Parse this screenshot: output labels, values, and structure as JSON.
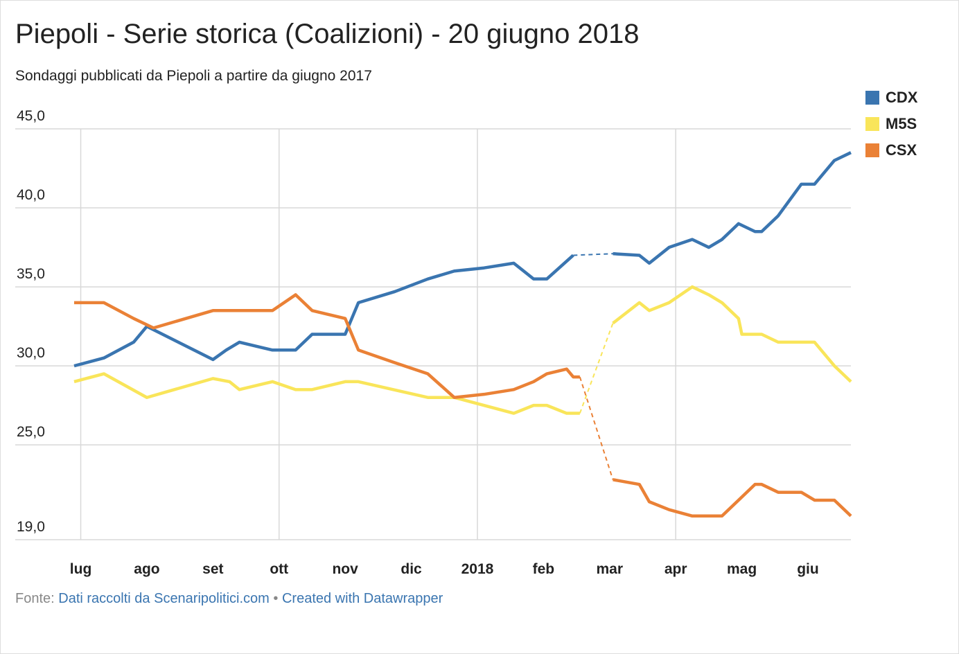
{
  "chart_data": {
    "type": "line",
    "title": "Piepoli - Serie storica (Coalizioni) - 20 giugno 2018",
    "subtitle": "Sondaggi pubblicati da Piepoli a partire da giugno 2017",
    "xlim": [
      -0.1,
      11.65
    ],
    "xticks": [
      {
        "value": 0,
        "label": "lug"
      },
      {
        "value": 1,
        "label": "ago"
      },
      {
        "value": 2,
        "label": "set"
      },
      {
        "value": 3,
        "label": "ott"
      },
      {
        "value": 4,
        "label": "nov"
      },
      {
        "value": 5,
        "label": "dic"
      },
      {
        "value": 6,
        "label": "2018"
      },
      {
        "value": 7,
        "label": "feb"
      },
      {
        "value": 8,
        "label": "mar"
      },
      {
        "value": 9,
        "label": "apr"
      },
      {
        "value": 10,
        "label": "mag"
      },
      {
        "value": 11,
        "label": "giu"
      }
    ],
    "ylim": [
      19,
      45
    ],
    "yticks": [
      {
        "value": 19,
        "label": "19,0"
      },
      {
        "value": 25,
        "label": "25,0"
      },
      {
        "value": 30,
        "label": "30,0"
      },
      {
        "value": 35,
        "label": "35,0"
      },
      {
        "value": 40,
        "label": "40,0"
      },
      {
        "value": 45,
        "label": "45,0"
      }
    ],
    "grid": true,
    "legend": "top-right",
    "series": [
      {
        "name": "CDX",
        "color": "#3a75b0",
        "x": [
          -0.1,
          0.35,
          0.8,
          1.0,
          2.0,
          2.2,
          2.4,
          2.9,
          3.25,
          3.5,
          4.0,
          4.2,
          4.75,
          5.25,
          5.65,
          6.1,
          6.55,
          6.85,
          7.05,
          7.45,
          null,
          8.05,
          8.45,
          8.6,
          8.9,
          9.25,
          9.5,
          9.7,
          9.95,
          10.2,
          10.3,
          10.55,
          10.9,
          11.1,
          11.4,
          11.65
        ],
        "values": [
          30.0,
          30.5,
          31.5,
          32.5,
          30.4,
          31.0,
          31.5,
          31.0,
          31.0,
          32.0,
          32.0,
          34.0,
          34.7,
          35.5,
          36.0,
          36.2,
          36.5,
          35.5,
          35.5,
          37.0,
          null,
          37.1,
          37.0,
          36.5,
          37.5,
          38.0,
          37.5,
          38.0,
          39.0,
          38.5,
          38.5,
          39.5,
          41.5,
          41.5,
          43.0,
          43.5
        ]
      },
      {
        "name": "M5S",
        "color": "#f9e55a",
        "x": [
          -0.1,
          0.35,
          1.0,
          2.0,
          2.25,
          2.4,
          2.9,
          3.25,
          3.5,
          4.0,
          4.2,
          5.25,
          5.65,
          6.55,
          6.85,
          7.05,
          7.35,
          7.55,
          null,
          8.05,
          8.45,
          8.6,
          8.9,
          9.25,
          9.5,
          9.7,
          9.95,
          10.0,
          10.3,
          10.55,
          11.1,
          11.4,
          11.65
        ],
        "values": [
          29.0,
          29.5,
          28.0,
          29.2,
          29.0,
          28.5,
          29.0,
          28.5,
          28.5,
          29.0,
          29.0,
          28.0,
          28.0,
          27.0,
          27.5,
          27.5,
          27.0,
          27.0,
          null,
          32.7,
          34.0,
          33.5,
          34.0,
          35.0,
          34.5,
          34.0,
          33.0,
          32.0,
          32.0,
          31.5,
          31.5,
          30.0,
          29.0
        ]
      },
      {
        "name": "CSX",
        "color": "#ea8136",
        "x": [
          -0.1,
          0.35,
          0.8,
          1.1,
          2.0,
          2.9,
          3.25,
          3.5,
          4.0,
          4.2,
          4.75,
          5.25,
          5.65,
          6.1,
          6.55,
          6.85,
          7.05,
          7.35,
          7.45,
          7.55,
          null,
          8.05,
          8.45,
          8.6,
          8.9,
          9.25,
          9.7,
          9.95,
          10.2,
          10.3,
          10.55,
          10.9,
          11.1,
          11.4,
          11.65
        ],
        "values": [
          34.0,
          34.0,
          33.0,
          32.4,
          33.5,
          33.5,
          34.5,
          33.5,
          33.0,
          31.0,
          30.2,
          29.5,
          28.0,
          28.2,
          28.5,
          29.0,
          29.5,
          29.8,
          29.3,
          29.3,
          null,
          22.8,
          22.5,
          21.4,
          20.9,
          20.5,
          20.5,
          21.5,
          22.5,
          22.5,
          22.0,
          22.0,
          21.5,
          21.5,
          20.5
        ]
      }
    ],
    "footer": {
      "label": "Fonte:",
      "source": "Dati raccolti da Scenaripolitici.com",
      "separator": "•",
      "credit": "Created with Datawrapper"
    }
  }
}
